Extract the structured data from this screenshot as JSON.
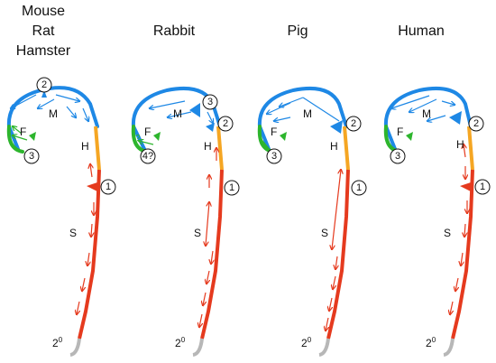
{
  "titles": {
    "mouse": [
      "Mouse",
      "Rat",
      "Hamster"
    ],
    "rabbit": "Rabbit",
    "pig": "Pig",
    "human": "Human"
  },
  "region_labels": {
    "M": "M",
    "F": "F",
    "H": "H",
    "S": "S",
    "secondary": "2",
    "secondary_sup": "0"
  },
  "panels": {
    "mouse": {
      "sites": [
        "1",
        "2",
        "3"
      ]
    },
    "rabbit": {
      "sites": [
        "1",
        "2",
        "3",
        "4?"
      ],
      "extra": "?"
    },
    "pig": {
      "sites": [
        "1",
        "2",
        "3"
      ]
    },
    "human": {
      "sites": [
        "1",
        "2",
        "3"
      ]
    }
  },
  "colors": {
    "blue": "#1e88e5",
    "green": "#2db52d",
    "orange": "#f5a623",
    "red": "#e53a1e",
    "grey": "#b7b7b7"
  }
}
